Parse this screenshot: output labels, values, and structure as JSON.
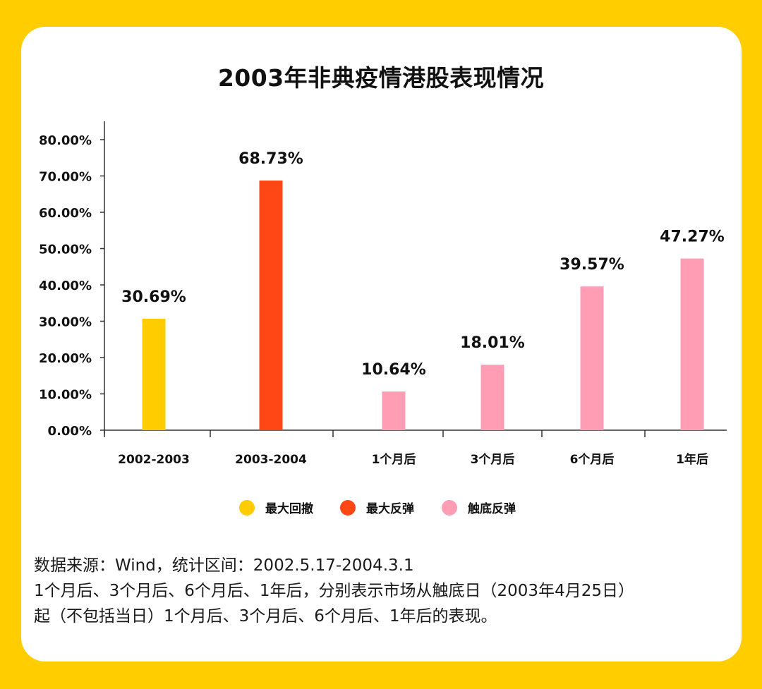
{
  "colors": {
    "background": "#ffcd00",
    "card": "#ffffff",
    "max_drawdown": "#ffcc00",
    "max_rebound": "#ff4716",
    "bottom_rebound": "#ff9db4"
  },
  "chart_data": {
    "type": "bar",
    "title": "2003年非典疫情港股表现情况",
    "categories": [
      "2002-2003",
      "2003-2004",
      "1个月后",
      "3个月后",
      "6个月后",
      "1年后"
    ],
    "values": [
      30.69,
      68.73,
      10.64,
      18.01,
      39.57,
      47.27
    ],
    "value_labels": [
      "30.69%",
      "68.73%",
      "10.64%",
      "18.01%",
      "39.57%",
      "47.27%"
    ],
    "bar_series": [
      "max_drawdown",
      "max_rebound",
      "bottom_rebound",
      "bottom_rebound",
      "bottom_rebound",
      "bottom_rebound"
    ],
    "ylim": [
      0,
      80
    ],
    "yticks": [
      0,
      10,
      20,
      30,
      40,
      50,
      60,
      70,
      80
    ],
    "ytick_labels": [
      "0.00%",
      "10.00%",
      "20.00%",
      "30.00%",
      "40.00%",
      "50.00%",
      "60.00%",
      "70.00%",
      "80.00%"
    ],
    "legend": [
      {
        "key": "max_drawdown",
        "label": "最大回撤"
      },
      {
        "key": "max_rebound",
        "label": "最大反弹"
      },
      {
        "key": "bottom_rebound",
        "label": "触底反弹"
      }
    ],
    "legend_position": "bottom-center",
    "xlabel": "",
    "ylabel": ""
  },
  "notes": {
    "line1": "数据来源：Wind，统计区间：2002.5.17-2004.3.1",
    "line2": "1个月后、3个月后、6个月后、1年后，分别表示市场从触底日（2003年4月25日）",
    "line3": "起（不包括当日）1个月后、3个月后、6个月后、1年后的表现。"
  }
}
